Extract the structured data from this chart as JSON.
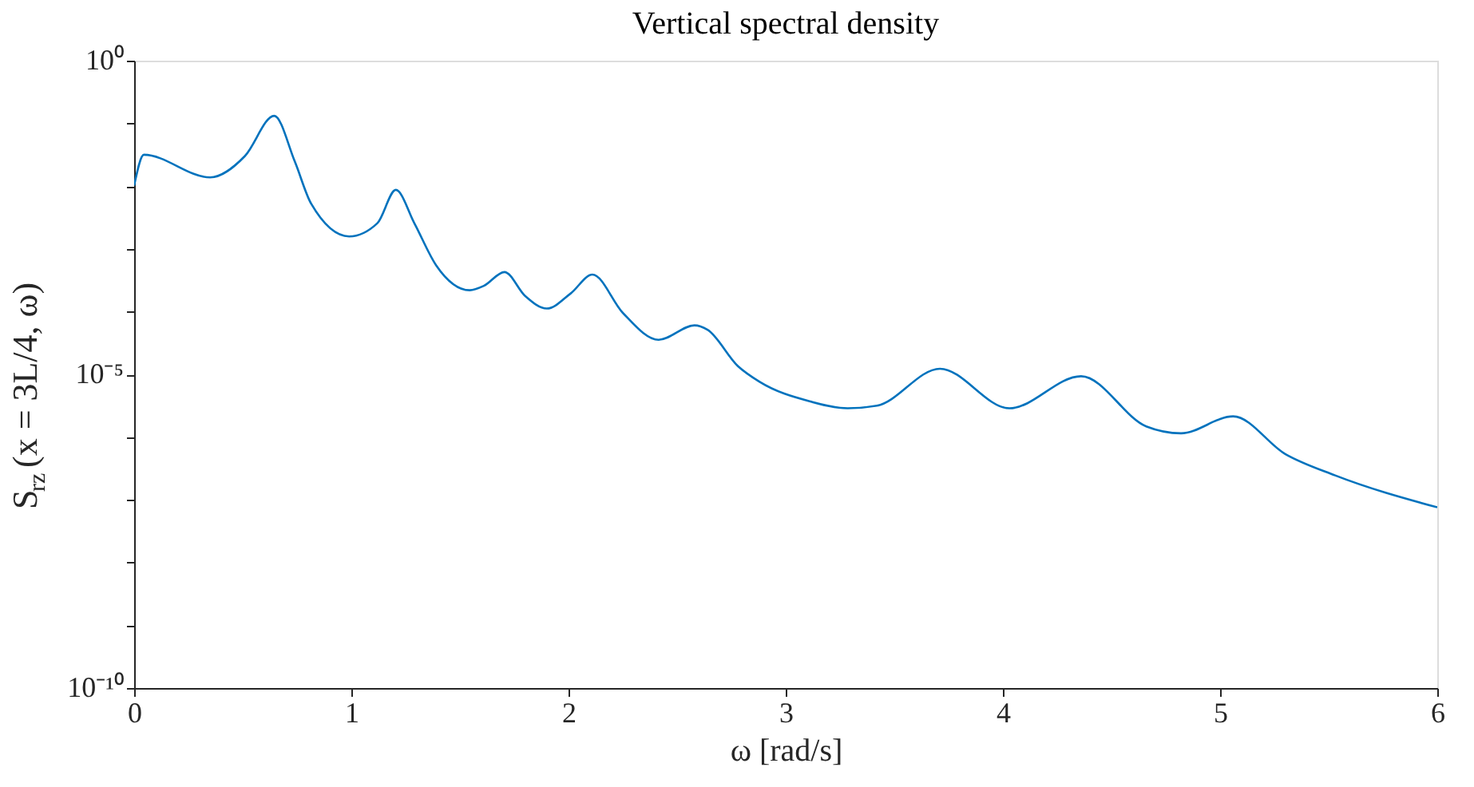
{
  "chart_data": {
    "type": "line",
    "title": "Vertical spectral density",
    "xlabel": "ω [rad/s]",
    "ylabel": "S$_{rz}$(x = 3L/4, ω)",
    "log": "y",
    "grid": false,
    "marker": "none",
    "line_style": "solid",
    "xlim": [
      0,
      6
    ],
    "xticks": [
      0,
      1,
      2,
      3,
      4,
      5,
      6
    ],
    "ylim": [
      1e-10,
      1
    ],
    "yticks": [
      {
        "value": 1,
        "label": "10⁰"
      },
      {
        "value": 0.1,
        "label": null
      },
      {
        "value": 0.01,
        "label": null
      },
      {
        "value": 0.001,
        "label": null
      },
      {
        "value": 0.0001,
        "label": null
      },
      {
        "value": 1e-05,
        "label": "10⁻⁵"
      },
      {
        "value": 1e-06,
        "label": null
      },
      {
        "value": 1e-07,
        "label": null
      },
      {
        "value": 1e-08,
        "label": null
      },
      {
        "value": 1e-09,
        "label": null
      },
      {
        "value": 1e-10,
        "label": "10⁻¹⁰"
      }
    ],
    "series": [
      {
        "color": "#0072bd",
        "x": [
          0.0,
          0.045,
          0.35,
          0.51,
          0.645,
          0.74,
          0.815,
          0.99,
          1.12,
          1.205,
          1.29,
          1.39,
          1.545,
          1.61,
          1.705,
          1.8,
          1.9,
          2.01,
          2.11,
          2.25,
          2.415,
          2.58,
          2.64,
          2.78,
          2.88,
          3.11,
          3.285,
          3.42,
          3.71,
          4.03,
          4.36,
          4.66,
          4.82,
          5.06,
          5.3,
          5.53,
          6.0
        ],
        "values": [
          0.0102,
          0.0316,
          0.0138,
          0.0302,
          0.132,
          0.0245,
          0.00525,
          0.00158,
          0.00257,
          0.00871,
          0.00257,
          0.00055,
          0.000219,
          0.000257,
          0.000427,
          0.000178,
          0.000112,
          0.000195,
          0.000389,
          9.55e-05,
          3.55e-05,
          6.03e-05,
          5.13e-05,
          1.35e-05,
          7.59e-06,
          3.72e-06,
          2.88e-06,
          3.16e-06,
          1.23e-05,
          2.88e-06,
          9.33e-06,
          1.48e-06,
          1.15e-06,
          2.14e-06,
          5.37e-07,
          2.45e-07,
          7.59e-08
        ]
      }
    ]
  }
}
